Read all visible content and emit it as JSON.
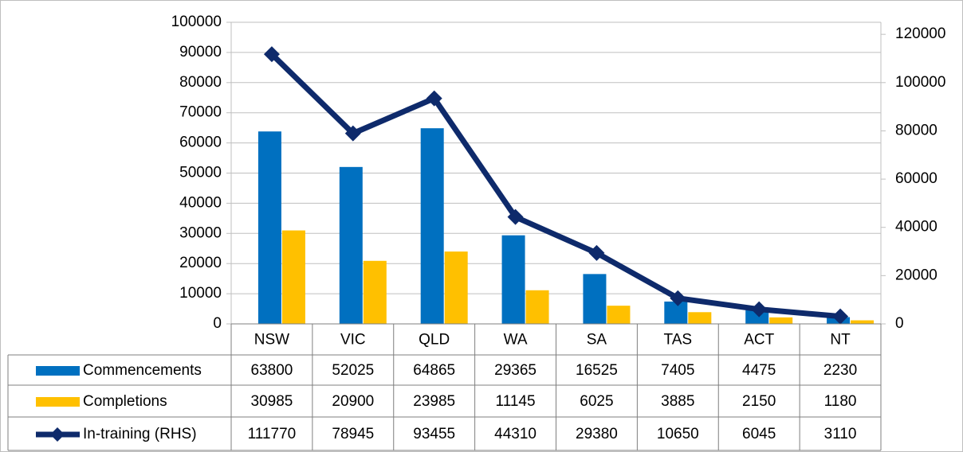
{
  "chart_data": {
    "type": "bar",
    "categories": [
      "NSW",
      "VIC",
      "QLD",
      "WA",
      "SA",
      "TAS",
      "ACT",
      "NT"
    ],
    "series": [
      {
        "name": "Commencements",
        "color": "#0070c0",
        "type": "bar",
        "values": [
          63800,
          52025,
          64865,
          29365,
          16525,
          7405,
          4475,
          2230
        ]
      },
      {
        "name": "Completions",
        "color": "#ffc000",
        "type": "bar",
        "values": [
          30985,
          20900,
          23985,
          11145,
          6025,
          3885,
          2150,
          1180
        ]
      },
      {
        "name": "In-training (RHS)",
        "color": "#0e2a6b",
        "type": "line",
        "axis": "y2",
        "values": [
          111770,
          78945,
          93455,
          44310,
          29380,
          10650,
          6045,
          3110
        ]
      }
    ],
    "ylim": [
      0,
      100000
    ],
    "yticks": [
      0,
      10000,
      20000,
      30000,
      40000,
      50000,
      60000,
      70000,
      80000,
      90000,
      100000
    ],
    "y2lim": [
      0,
      125000
    ],
    "y2ticks": [
      0,
      20000,
      40000,
      60000,
      80000,
      100000,
      120000
    ],
    "grid": true,
    "data_table": true
  }
}
